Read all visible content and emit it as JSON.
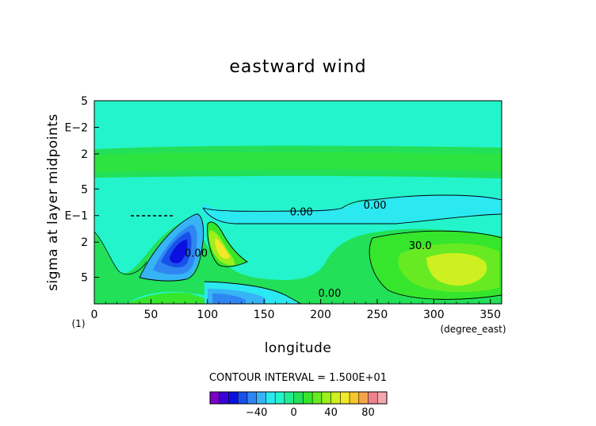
{
  "chart_data": {
    "type": "heatmap",
    "title": "eastward wind",
    "xlabel": "longitude",
    "xunit": "(degree_east)",
    "ylabel": "sigma at layer midpoints",
    "yunit": "(1)",
    "xlim": [
      0,
      360
    ],
    "x_ticks": [
      "0",
      "50",
      "100",
      "150",
      "200",
      "250",
      "300",
      "350"
    ],
    "y_ticks": [
      "5",
      "E−2",
      "2",
      "5",
      "E−1",
      "2",
      "5"
    ],
    "contour_interval": "CONTOUR INTERVAL = 1.500E+01",
    "contour_labels": [
      {
        "text": "0.00",
        "x": 248,
        "sigma": 0.08
      },
      {
        "text": "0.00",
        "x": 183,
        "sigma": 0.095
      },
      {
        "text": "0.00",
        "x": 90,
        "sigma": 0.28
      },
      {
        "text": "0.00",
        "x": 208,
        "sigma": 0.8
      },
      {
        "text": "30.0",
        "x": 288,
        "sigma": 0.23
      }
    ],
    "colorbar": {
      "ticks": [
        "−40",
        "0",
        "40",
        "80"
      ],
      "colors": [
        "#7a00c8",
        "#3a00d8",
        "#0a10e0",
        "#1850ea",
        "#2f86f2",
        "#36b4f6",
        "#2ce8f0",
        "#24f4cc",
        "#22ec90",
        "#22e058",
        "#36e62c",
        "#68ea22",
        "#9cee1c",
        "#cef020",
        "#f4e82a",
        "#f8c62c",
        "#f6a44a",
        "#f0828c",
        "#f4a8ae"
      ]
    }
  }
}
